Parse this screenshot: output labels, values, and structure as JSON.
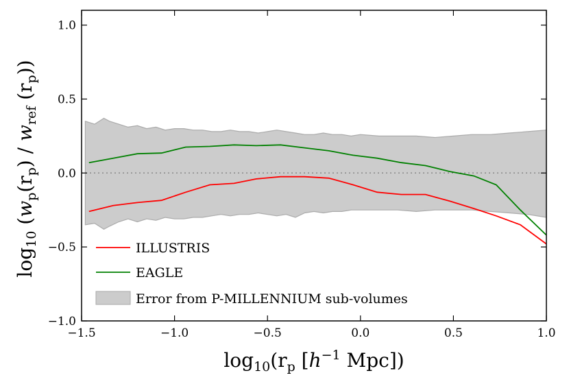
{
  "chart_data": {
    "type": "line",
    "xlabel": {
      "main": "log",
      "sub": "10",
      "open": "(r",
      "sub2": "p",
      "rest": " [",
      "h": "h",
      "sup": "−1",
      "mpc": " Mpc])"
    },
    "ylabel": {
      "main": "log",
      "sub": "10",
      "open": " (",
      "w": "w",
      "wsub": "p",
      "r": "(r",
      "rsub": "p",
      "mid": ") / ",
      "w2": "w",
      "w2sub": "ref",
      "r2": " (r",
      "r2sub": "p",
      "end": "))"
    },
    "xlim": [
      -1.5,
      1.0
    ],
    "ylim": [
      -1.0,
      1.1
    ],
    "xticks": [
      -1.5,
      -1.0,
      -0.5,
      0.0,
      0.5,
      1.0
    ],
    "xtick_labels": [
      "−1.5",
      "−1.0",
      "−0.5",
      "0.0",
      "0.5",
      "1.0"
    ],
    "yticks": [
      -1.0,
      -0.5,
      0.0,
      0.5,
      1.0
    ],
    "ytick_labels": [
      "−1.0",
      "−0.5",
      "0.0",
      "0.5",
      "1.0"
    ],
    "reference_line": 0.0,
    "series": [
      {
        "name": "ILLUSTRIS",
        "color": "#ff0000",
        "x": [
          -1.46,
          -1.33,
          -1.2,
          -1.07,
          -0.94,
          -0.81,
          -0.68,
          -0.56,
          -0.43,
          -0.3,
          -0.17,
          -0.04,
          0.09,
          0.22,
          0.35,
          0.48,
          0.61,
          0.73,
          0.86,
          1.0
        ],
        "y": [
          -0.26,
          -0.22,
          -0.2,
          -0.185,
          -0.13,
          -0.08,
          -0.07,
          -0.04,
          -0.025,
          -0.025,
          -0.035,
          -0.08,
          -0.13,
          -0.145,
          -0.145,
          -0.19,
          -0.24,
          -0.29,
          -0.35,
          -0.48
        ]
      },
      {
        "name": "EAGLE",
        "color": "#008000",
        "x": [
          -1.46,
          -1.33,
          -1.2,
          -1.07,
          -0.94,
          -0.81,
          -0.68,
          -0.56,
          -0.43,
          -0.3,
          -0.17,
          -0.04,
          0.09,
          0.22,
          0.35,
          0.48,
          0.61,
          0.73,
          0.86,
          1.0
        ],
        "y": [
          0.07,
          0.1,
          0.13,
          0.135,
          0.175,
          0.18,
          0.19,
          0.185,
          0.19,
          0.17,
          0.15,
          0.12,
          0.1,
          0.07,
          0.05,
          0.01,
          -0.02,
          -0.08,
          -0.25,
          -0.42
        ]
      }
    ],
    "band": {
      "name": "Error from P-MILLENNIUM sub-volumes",
      "color": "#cccccc",
      "edge_color": "#aaaaaa",
      "x": [
        -1.48,
        -1.43,
        -1.38,
        -1.35,
        -1.3,
        -1.25,
        -1.2,
        -1.15,
        -1.1,
        -1.05,
        -1.0,
        -0.95,
        -0.9,
        -0.85,
        -0.8,
        -0.75,
        -0.7,
        -0.65,
        -0.6,
        -0.55,
        -0.5,
        -0.45,
        -0.4,
        -0.35,
        -0.3,
        -0.25,
        -0.2,
        -0.15,
        -0.1,
        -0.05,
        0.0,
        0.1,
        0.2,
        0.3,
        0.4,
        0.5,
        0.6,
        0.7,
        0.8,
        0.9,
        1.0
      ],
      "upper": [
        0.35,
        0.33,
        0.37,
        0.35,
        0.33,
        0.31,
        0.32,
        0.3,
        0.31,
        0.29,
        0.3,
        0.3,
        0.29,
        0.29,
        0.28,
        0.28,
        0.29,
        0.28,
        0.28,
        0.27,
        0.28,
        0.29,
        0.28,
        0.27,
        0.26,
        0.26,
        0.27,
        0.26,
        0.26,
        0.25,
        0.26,
        0.25,
        0.25,
        0.25,
        0.24,
        0.25,
        0.26,
        0.26,
        0.27,
        0.28,
        0.29
      ],
      "lower": [
        -0.35,
        -0.34,
        -0.38,
        -0.36,
        -0.33,
        -0.31,
        -0.33,
        -0.31,
        -0.32,
        -0.3,
        -0.31,
        -0.31,
        -0.3,
        -0.3,
        -0.29,
        -0.28,
        -0.29,
        -0.28,
        -0.28,
        -0.27,
        -0.28,
        -0.29,
        -0.28,
        -0.3,
        -0.27,
        -0.26,
        -0.27,
        -0.26,
        -0.26,
        -0.25,
        -0.25,
        -0.25,
        -0.25,
        -0.26,
        -0.25,
        -0.25,
        -0.25,
        -0.26,
        -0.27,
        -0.28,
        -0.3
      ]
    },
    "legend": {
      "placement": "lower-left",
      "entries": [
        "ILLUSTRIS",
        "EAGLE",
        "Error from P-MILLENNIUM sub-volumes"
      ]
    }
  }
}
